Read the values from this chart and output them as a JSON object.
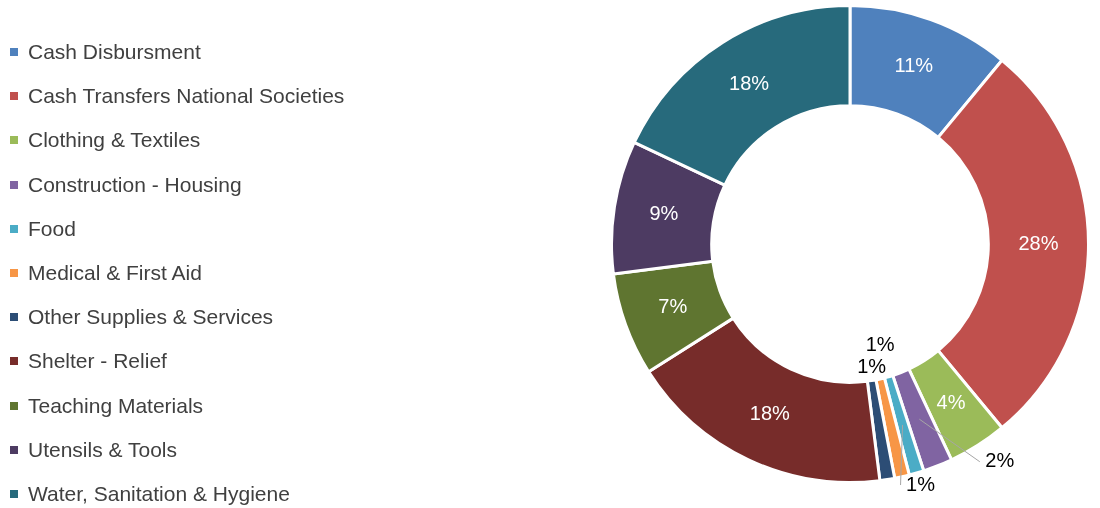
{
  "chart_data": {
    "type": "donut",
    "categories": [
      "Cash Disbursment",
      "Cash Transfers National Societies",
      "Clothing & Textiles",
      "Construction - Housing",
      "Food",
      "Medical & First Aid",
      "Other Supplies & Services",
      "Shelter - Relief",
      "Teaching Materials",
      "Utensils & Tools",
      "Water, Sanitation & Hygiene"
    ],
    "values": [
      11,
      28,
      4,
      2,
      1,
      1,
      1,
      18,
      7,
      9,
      18
    ],
    "colors": [
      "#4f81bd",
      "#c0504d",
      "#9bbb59",
      "#8064a2",
      "#4bacc6",
      "#f79646",
      "#2c4d75",
      "#772c2a",
      "#5f7530",
      "#4d3b62",
      "#276a7c"
    ],
    "value_labels": [
      "11%",
      "28%",
      "4%",
      "2%",
      "1%",
      "1%",
      "1%",
      "18%",
      "7%",
      "9%",
      "18%"
    ],
    "legend": "left"
  }
}
